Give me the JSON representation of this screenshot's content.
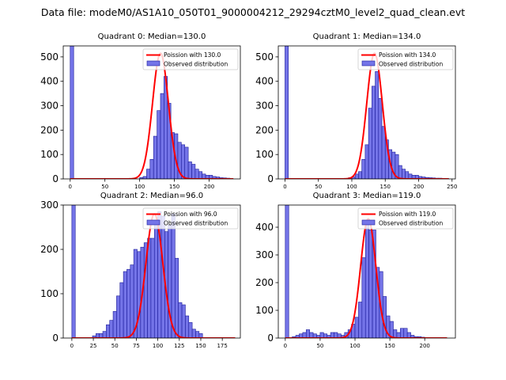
{
  "figure": {
    "suptitle": "Data file: modeM0/AS1A10_050T01_9000004212_29294cztM0_level2_quad_clean.evt"
  },
  "colors": {
    "hist_fill": "#7474e8",
    "hist_edge": "#1a1a99",
    "poisson_line": "#ff0000"
  },
  "legend": {
    "poisson_prefix": "Poission with ",
    "observed_label": "Observed distribution"
  },
  "chart_data": [
    {
      "type": "bar",
      "name": "quadrant-0",
      "title": "Quadrant 0: Median=130.0",
      "median": 130.0,
      "poisson_label": "Poission with 130.0",
      "legend_position": "top-right",
      "xlim": [
        -10,
        245
      ],
      "ylim": [
        0,
        545
      ],
      "xticks": [
        0,
        50,
        100,
        150,
        200
      ],
      "yticks": [
        0,
        100,
        200,
        300,
        400,
        500
      ],
      "bin_width": 5,
      "zero_bin": {
        "x": 0,
        "count": 545
      },
      "bins": [
        {
          "x": 100,
          "count": 6
        },
        {
          "x": 105,
          "count": 10
        },
        {
          "x": 110,
          "count": 40
        },
        {
          "x": 115,
          "count": 80
        },
        {
          "x": 120,
          "count": 175
        },
        {
          "x": 125,
          "count": 280
        },
        {
          "x": 130,
          "count": 350
        },
        {
          "x": 135,
          "count": 420
        },
        {
          "x": 140,
          "count": 310
        },
        {
          "x": 145,
          "count": 190
        },
        {
          "x": 150,
          "count": 185
        },
        {
          "x": 155,
          "count": 150
        },
        {
          "x": 160,
          "count": 140
        },
        {
          "x": 165,
          "count": 130
        },
        {
          "x": 170,
          "count": 70
        },
        {
          "x": 175,
          "count": 60
        },
        {
          "x": 180,
          "count": 40
        },
        {
          "x": 185,
          "count": 30
        },
        {
          "x": 190,
          "count": 20
        },
        {
          "x": 195,
          "count": 15
        },
        {
          "x": 200,
          "count": 15
        },
        {
          "x": 205,
          "count": 10
        },
        {
          "x": 210,
          "count": 8
        },
        {
          "x": 215,
          "count": 5
        },
        {
          "x": 220,
          "count": 4
        },
        {
          "x": 225,
          "count": 3
        }
      ],
      "poisson": {
        "mean": 130,
        "peak": 515,
        "x_range": [
          0,
          235
        ]
      }
    },
    {
      "type": "bar",
      "name": "quadrant-1",
      "title": "Quadrant 1: Median=134.0",
      "median": 134.0,
      "poisson_label": "Poission with 134.0",
      "legend_position": "top-right",
      "xlim": [
        -10,
        255
      ],
      "ylim": [
        0,
        545
      ],
      "xticks": [
        0,
        50,
        100,
        150,
        200,
        250
      ],
      "yticks": [
        0,
        100,
        200,
        300,
        400,
        500
      ],
      "bin_width": 5,
      "zero_bin": {
        "x": 0,
        "count": 545
      },
      "bins": [
        {
          "x": 95,
          "count": 5
        },
        {
          "x": 100,
          "count": 8
        },
        {
          "x": 105,
          "count": 20
        },
        {
          "x": 110,
          "count": 30
        },
        {
          "x": 115,
          "count": 80
        },
        {
          "x": 120,
          "count": 140
        },
        {
          "x": 125,
          "count": 290
        },
        {
          "x": 130,
          "count": 380
        },
        {
          "x": 135,
          "count": 440
        },
        {
          "x": 140,
          "count": 330
        },
        {
          "x": 145,
          "count": 215
        },
        {
          "x": 150,
          "count": 160
        },
        {
          "x": 155,
          "count": 120
        },
        {
          "x": 160,
          "count": 110
        },
        {
          "x": 165,
          "count": 100
        },
        {
          "x": 170,
          "count": 55
        },
        {
          "x": 175,
          "count": 40
        },
        {
          "x": 180,
          "count": 30
        },
        {
          "x": 185,
          "count": 20
        },
        {
          "x": 190,
          "count": 15
        },
        {
          "x": 195,
          "count": 15
        },
        {
          "x": 200,
          "count": 10
        },
        {
          "x": 205,
          "count": 8
        },
        {
          "x": 210,
          "count": 6
        },
        {
          "x": 215,
          "count": 5
        },
        {
          "x": 220,
          "count": 4
        },
        {
          "x": 225,
          "count": 3
        },
        {
          "x": 230,
          "count": 3
        },
        {
          "x": 235,
          "count": 2
        },
        {
          "x": 240,
          "count": 2
        }
      ],
      "poisson": {
        "mean": 134,
        "peak": 515,
        "x_range": [
          0,
          245
        ]
      }
    },
    {
      "type": "bar",
      "name": "quadrant-2",
      "title": "Quadrant 2: Median=96.0",
      "median": 96.0,
      "poisson_label": "Poission with 96.0",
      "legend_position": "top-right",
      "xlim": [
        -10,
        196
      ],
      "ylim": [
        0,
        300
      ],
      "xticks": [
        0,
        25,
        50,
        75,
        100,
        125,
        150,
        175
      ],
      "yticks": [
        0,
        100,
        200,
        300
      ],
      "bin_width": 4,
      "zero_bin": {
        "x": 0,
        "count": 300
      },
      "bins": [
        {
          "x": 24,
          "count": 5
        },
        {
          "x": 28,
          "count": 10
        },
        {
          "x": 32,
          "count": 10
        },
        {
          "x": 36,
          "count": 15
        },
        {
          "x": 40,
          "count": 30
        },
        {
          "x": 44,
          "count": 40
        },
        {
          "x": 48,
          "count": 60
        },
        {
          "x": 52,
          "count": 95
        },
        {
          "x": 56,
          "count": 125
        },
        {
          "x": 60,
          "count": 150
        },
        {
          "x": 64,
          "count": 155
        },
        {
          "x": 68,
          "count": 165
        },
        {
          "x": 72,
          "count": 200
        },
        {
          "x": 76,
          "count": 195
        },
        {
          "x": 80,
          "count": 205
        },
        {
          "x": 84,
          "count": 215
        },
        {
          "x": 88,
          "count": 225
        },
        {
          "x": 92,
          "count": 225
        },
        {
          "x": 96,
          "count": 260
        },
        {
          "x": 100,
          "count": 285
        },
        {
          "x": 104,
          "count": 275
        },
        {
          "x": 108,
          "count": 240
        },
        {
          "x": 112,
          "count": 255
        },
        {
          "x": 116,
          "count": 280
        },
        {
          "x": 120,
          "count": 180
        },
        {
          "x": 124,
          "count": 80
        },
        {
          "x": 128,
          "count": 75
        },
        {
          "x": 132,
          "count": 50
        },
        {
          "x": 136,
          "count": 35
        },
        {
          "x": 140,
          "count": 20
        },
        {
          "x": 144,
          "count": 15
        },
        {
          "x": 148,
          "count": 10
        }
      ],
      "poisson": {
        "mean": 96,
        "peak": 280,
        "x_range": [
          0,
          190
        ]
      }
    },
    {
      "type": "bar",
      "name": "quadrant-3",
      "title": "Quadrant 3: Median=119.0",
      "median": 119.0,
      "poisson_label": "Poission with 119.0",
      "legend_position": "top-right",
      "xlim": [
        -10,
        244
      ],
      "ylim": [
        0,
        480
      ],
      "xticks": [
        0,
        50,
        100,
        150,
        200
      ],
      "yticks": [
        0,
        100,
        200,
        300,
        400
      ],
      "bin_width": 5,
      "zero_bin": {
        "x": 0,
        "count": 480
      },
      "bins": [
        {
          "x": 10,
          "count": 5
        },
        {
          "x": 15,
          "count": 10
        },
        {
          "x": 20,
          "count": 15
        },
        {
          "x": 25,
          "count": 20
        },
        {
          "x": 30,
          "count": 30
        },
        {
          "x": 35,
          "count": 20
        },
        {
          "x": 40,
          "count": 15
        },
        {
          "x": 45,
          "count": 10
        },
        {
          "x": 50,
          "count": 20
        },
        {
          "x": 55,
          "count": 15
        },
        {
          "x": 60,
          "count": 10
        },
        {
          "x": 65,
          "count": 20
        },
        {
          "x": 70,
          "count": 20
        },
        {
          "x": 75,
          "count": 15
        },
        {
          "x": 80,
          "count": 10
        },
        {
          "x": 85,
          "count": 20
        },
        {
          "x": 90,
          "count": 30
        },
        {
          "x": 95,
          "count": 50
        },
        {
          "x": 100,
          "count": 75
        },
        {
          "x": 105,
          "count": 130
        },
        {
          "x": 110,
          "count": 290
        },
        {
          "x": 115,
          "count": 410
        },
        {
          "x": 120,
          "count": 390
        },
        {
          "x": 125,
          "count": 390
        },
        {
          "x": 130,
          "count": 255
        },
        {
          "x": 135,
          "count": 240
        },
        {
          "x": 140,
          "count": 150
        },
        {
          "x": 145,
          "count": 80
        },
        {
          "x": 150,
          "count": 60
        },
        {
          "x": 155,
          "count": 30
        },
        {
          "x": 160,
          "count": 20
        },
        {
          "x": 165,
          "count": 35
        },
        {
          "x": 170,
          "count": 35
        },
        {
          "x": 175,
          "count": 20
        },
        {
          "x": 180,
          "count": 10
        },
        {
          "x": 185,
          "count": 5
        },
        {
          "x": 190,
          "count": 5
        },
        {
          "x": 195,
          "count": 3
        }
      ],
      "poisson": {
        "mean": 119,
        "peak": 430,
        "x_range": [
          0,
          232
        ]
      }
    }
  ]
}
